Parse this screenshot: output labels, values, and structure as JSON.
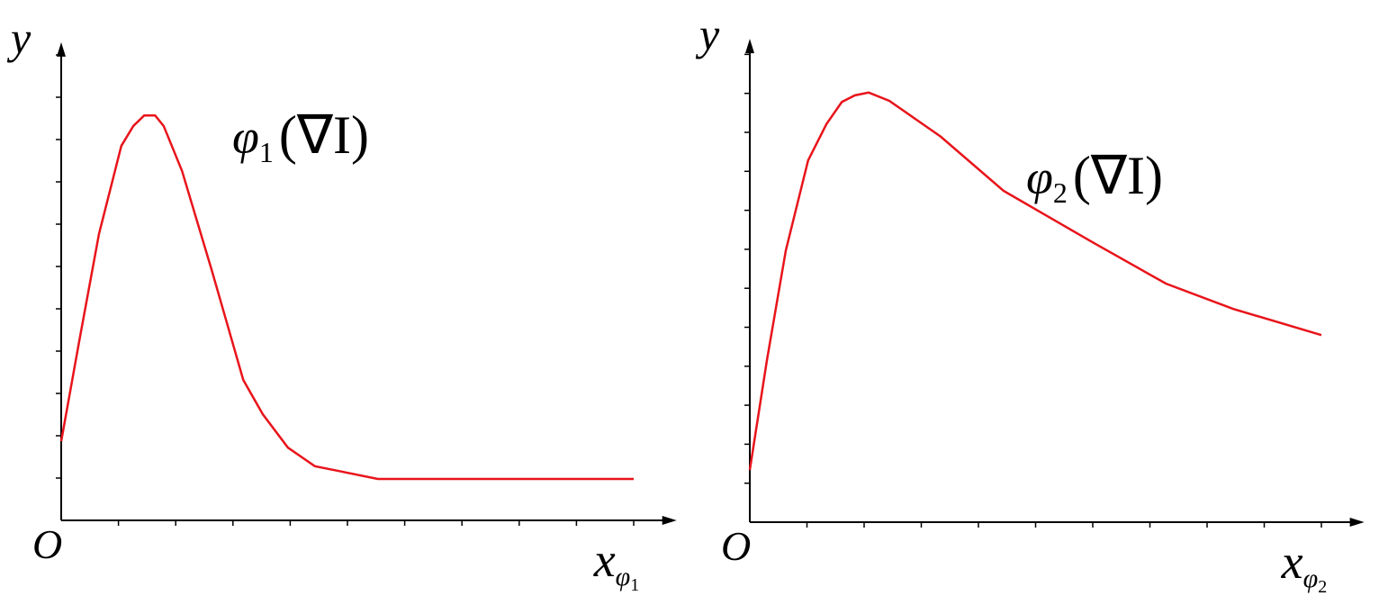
{
  "chart_data": [
    {
      "type": "line",
      "ylabel": "y",
      "origin_label": "O",
      "xlabel": {
        "main": "x",
        "sub": "φ",
        "subsub": "1"
      },
      "annotation": {
        "main": "φ",
        "sub": "1",
        "rest": "(∇I)"
      },
      "xlim": [
        0,
        10.75
      ],
      "ylim": [
        0,
        11.3
      ],
      "xticks": [
        1,
        2,
        3,
        4,
        5,
        6,
        7,
        8,
        9,
        10
      ],
      "yticks": [
        1,
        2,
        3,
        4,
        5,
        6,
        7,
        8,
        9,
        10,
        11
      ],
      "x": [
        0,
        0.31,
        0.66,
        1.05,
        1.26,
        1.45,
        1.64,
        1.79,
        2.11,
        2.63,
        3.18,
        3.52,
        3.96,
        4.43,
        4.91,
        5.53,
        10
      ],
      "series": [
        {
          "color": "#e8141b",
          "values": [
            1.87,
            4.2,
            6.77,
            8.85,
            9.32,
            9.57,
            9.57,
            9.32,
            8.26,
            5.91,
            3.32,
            2.51,
            1.72,
            1.28,
            1.15,
            0.98,
            0.98
          ]
        }
      ]
    },
    {
      "type": "line",
      "ylabel": "y",
      "origin_label": "O",
      "xlabel": {
        "main": "x",
        "sub": "φ",
        "subsub": "2"
      },
      "annotation": {
        "main": "φ",
        "sub": "2",
        "rest": "(∇I)"
      },
      "xlim": [
        0,
        10.75
      ],
      "ylim": [
        0,
        12.4
      ],
      "xticks": [
        1,
        2,
        3,
        4,
        5,
        6,
        7,
        8,
        9,
        10
      ],
      "yticks": [
        1,
        2,
        3,
        4,
        5,
        6,
        7,
        8,
        9,
        10,
        11,
        12
      ],
      "x": [
        0,
        0.3,
        0.63,
        1.02,
        1.34,
        1.61,
        1.84,
        2.08,
        2.44,
        3.34,
        4.44,
        6.02,
        7.28,
        8.46,
        10
      ],
      "series": [
        {
          "color": "#e8141b",
          "values": [
            1.34,
            4.16,
            6.97,
            9.28,
            10.21,
            10.78,
            10.95,
            11.02,
            10.81,
            9.89,
            8.5,
            7.16,
            6.12,
            5.47,
            4.8
          ]
        }
      ]
    }
  ]
}
